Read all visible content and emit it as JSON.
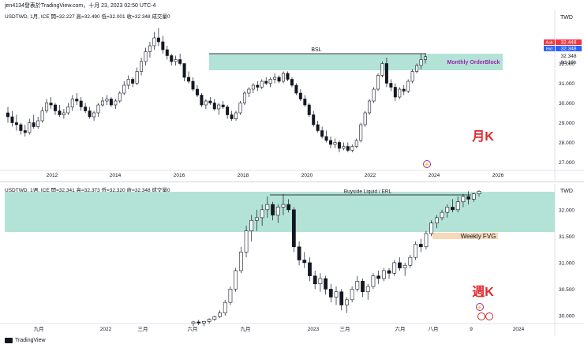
{
  "header": {
    "text": "jen4134發表於TradingView.com，十月 23, 2023 02:50 UTC-4"
  },
  "footer": {
    "brand": "TradingView"
  },
  "monthly": {
    "title": "USDTWD, 1月, ICE  開=32.227  高=32.490  低=32.001  收=32.348  成交量0",
    "currency": "TWD",
    "ask": {
      "label": "Ask",
      "value": "32.448"
    },
    "bid": {
      "label": "Bid",
      "value": "32.348"
    },
    "last": {
      "value": "32.348",
      "countdown": "8d 16h"
    },
    "zone_label": "Monthly OrderBlock",
    "bsl_label": "BSL",
    "period_label": "月K",
    "colors": {
      "zone": "#b2e3d6",
      "zone_label": "#9c27b0",
      "period": "#e0292f",
      "ask": "#f23645",
      "bid": "#2962ff"
    }
  },
  "weekly": {
    "title": "USDTWD, 1週, ICE  開=32.341  高=32.373  低=32.320  收=32.348  成交量0",
    "currency": "TWD",
    "erl_label": "Buyside Liquid / ERL",
    "fvg_label": "Weekly FVG",
    "period_label": "週K",
    "colors": {
      "zone": "#b2e3d6",
      "fvg": "#f8d8b8",
      "period": "#e0292f"
    }
  },
  "chart_data": [
    {
      "type": "candlestick",
      "title": "USDTWD, 1月, ICE",
      "xlabel": "",
      "ylabel": "",
      "x_ticks": [
        "2012",
        "2014",
        "2016",
        "2018",
        "2020",
        "2022",
        "2024",
        "2026"
      ],
      "y_ticks": [
        "27.000",
        "28.000",
        "29.000",
        "30.000",
        "31.000",
        "32.000"
      ],
      "ylim": [
        26.7,
        33.9
      ],
      "grid": false,
      "last_close": 32.348,
      "zones": [
        {
          "label": "Monthly OrderBlock",
          "from": 31.63,
          "to": 32.39
        }
      ],
      "lines": [
        {
          "label": "BSL",
          "value": 32.45
        }
      ],
      "ohlc": [
        [
          29.5,
          29.8,
          29.0,
          29.3
        ],
        [
          29.3,
          29.6,
          28.8,
          29.0
        ],
        [
          29.0,
          29.4,
          28.6,
          28.9
        ],
        [
          28.9,
          29.0,
          28.4,
          28.6
        ],
        [
          28.6,
          28.9,
          28.3,
          28.5
        ],
        [
          28.5,
          29.2,
          28.4,
          29.0
        ],
        [
          29.0,
          29.4,
          28.7,
          28.8
        ],
        [
          28.8,
          29.3,
          28.7,
          29.1
        ],
        [
          29.1,
          29.8,
          29.0,
          29.6
        ],
        [
          29.6,
          30.2,
          29.5,
          30.0
        ],
        [
          30.0,
          30.3,
          29.7,
          29.9
        ],
        [
          29.9,
          30.0,
          29.4,
          29.6
        ],
        [
          29.6,
          29.9,
          29.3,
          29.4
        ],
        [
          29.4,
          29.7,
          29.2,
          29.5
        ],
        [
          29.5,
          30.0,
          29.4,
          29.8
        ],
        [
          29.8,
          30.4,
          29.6,
          30.2
        ],
        [
          30.2,
          30.5,
          29.9,
          30.1
        ],
        [
          30.1,
          30.3,
          29.6,
          29.8
        ],
        [
          29.8,
          30.0,
          29.5,
          29.6
        ],
        [
          29.6,
          29.8,
          29.2,
          29.3
        ],
        [
          29.3,
          29.6,
          29.1,
          29.5
        ],
        [
          29.5,
          30.0,
          29.3,
          29.9
        ],
        [
          29.9,
          30.3,
          29.8,
          30.1
        ],
        [
          30.1,
          30.4,
          29.9,
          30.2
        ],
        [
          30.2,
          30.3,
          29.8,
          29.9
        ],
        [
          29.9,
          30.2,
          29.7,
          30.1
        ],
        [
          30.1,
          30.6,
          30.0,
          30.5
        ],
        [
          30.5,
          31.1,
          30.4,
          30.9
        ],
        [
          30.9,
          31.4,
          30.7,
          31.2
        ],
        [
          31.2,
          31.3,
          30.8,
          31.0
        ],
        [
          31.0,
          31.8,
          30.9,
          31.6
        ],
        [
          31.6,
          32.3,
          31.4,
          32.1
        ],
        [
          32.1,
          32.8,
          31.9,
          32.6
        ],
        [
          32.6,
          33.1,
          32.3,
          32.9
        ],
        [
          32.9,
          33.6,
          32.7,
          33.3
        ],
        [
          33.3,
          33.8,
          32.9,
          33.1
        ],
        [
          33.1,
          33.4,
          32.5,
          32.7
        ],
        [
          32.7,
          32.9,
          32.2,
          32.4
        ],
        [
          32.4,
          32.5,
          31.9,
          32.1
        ],
        [
          32.1,
          32.4,
          31.9,
          32.2
        ],
        [
          32.2,
          32.5,
          31.9,
          32.0
        ],
        [
          32.0,
          32.0,
          31.1,
          31.3
        ],
        [
          31.3,
          31.6,
          31.0,
          31.1
        ],
        [
          31.1,
          31.3,
          30.6,
          30.7
        ],
        [
          30.7,
          30.9,
          30.3,
          30.4
        ],
        [
          30.4,
          30.5,
          29.8,
          29.9
        ],
        [
          29.9,
          30.2,
          29.7,
          30.1
        ],
        [
          30.1,
          30.3,
          29.9,
          30.0
        ],
        [
          30.0,
          30.2,
          29.6,
          29.7
        ],
        [
          29.7,
          30.0,
          29.4,
          29.9
        ],
        [
          29.9,
          30.1,
          29.7,
          29.8
        ],
        [
          29.8,
          29.9,
          29.2,
          29.4
        ],
        [
          29.4,
          29.6,
          29.1,
          29.2
        ],
        [
          29.2,
          29.6,
          29.1,
          29.5
        ],
        [
          29.5,
          30.1,
          29.4,
          30.0
        ],
        [
          30.0,
          30.6,
          29.9,
          30.5
        ],
        [
          30.5,
          30.8,
          30.3,
          30.7
        ],
        [
          30.7,
          31.0,
          30.5,
          30.9
        ],
        [
          30.9,
          31.1,
          30.6,
          30.8
        ],
        [
          30.8,
          31.2,
          30.7,
          31.1
        ],
        [
          31.1,
          31.3,
          30.9,
          31.0
        ],
        [
          31.0,
          31.3,
          30.8,
          31.2
        ],
        [
          31.2,
          31.5,
          31.0,
          31.3
        ],
        [
          31.3,
          31.4,
          31.0,
          31.1
        ],
        [
          31.1,
          31.6,
          31.0,
          31.5
        ],
        [
          31.5,
          31.6,
          31.1,
          31.2
        ],
        [
          31.2,
          31.3,
          30.8,
          30.9
        ],
        [
          30.9,
          31.0,
          30.4,
          30.5
        ],
        [
          30.5,
          30.7,
          30.1,
          30.2
        ],
        [
          30.2,
          30.4,
          29.8,
          29.9
        ],
        [
          29.9,
          30.0,
          29.3,
          29.4
        ],
        [
          29.4,
          29.6,
          28.8,
          28.9
        ],
        [
          28.9,
          29.1,
          28.5,
          28.6
        ],
        [
          28.6,
          28.8,
          28.2,
          28.3
        ],
        [
          28.3,
          28.6,
          28.0,
          28.1
        ],
        [
          28.1,
          28.3,
          27.7,
          27.9
        ],
        [
          27.9,
          28.2,
          27.7,
          28.0
        ],
        [
          28.0,
          28.1,
          27.5,
          27.7
        ],
        [
          27.7,
          28.0,
          27.6,
          27.8
        ],
        [
          27.8,
          28.0,
          27.5,
          27.6
        ],
        [
          27.6,
          27.9,
          27.5,
          27.8
        ],
        [
          27.8,
          28.2,
          27.7,
          28.1
        ],
        [
          28.1,
          29.0,
          28.0,
          28.9
        ],
        [
          28.9,
          29.6,
          28.8,
          29.5
        ],
        [
          29.5,
          30.2,
          29.4,
          30.1
        ],
        [
          30.1,
          30.8,
          30.0,
          30.7
        ],
        [
          30.7,
          31.5,
          30.6,
          31.4
        ],
        [
          31.4,
          32.1,
          31.3,
          32.0
        ],
        [
          32.0,
          32.3,
          30.8,
          31.0
        ],
        [
          31.0,
          31.2,
          30.6,
          30.8
        ],
        [
          30.8,
          31.0,
          30.1,
          30.3
        ],
        [
          30.3,
          30.8,
          30.2,
          30.7
        ],
        [
          30.7,
          30.9,
          30.4,
          30.6
        ],
        [
          30.6,
          31.2,
          30.5,
          31.1
        ],
        [
          31.1,
          31.7,
          31.0,
          31.6
        ],
        [
          31.6,
          32.0,
          31.5,
          31.9
        ],
        [
          31.9,
          32.5,
          31.7,
          32.2
        ],
        [
          32.2,
          32.5,
          32.0,
          32.35
        ]
      ]
    },
    {
      "type": "candlestick",
      "title": "USDTWD, 1週, ICE",
      "xlabel": "",
      "ylabel": "",
      "x_ticks": [
        "九月",
        "2022",
        "三月",
        "六月",
        "九月",
        "2023",
        "三月",
        "六月",
        "八月",
        "9",
        "2024"
      ],
      "y_ticks": [
        "30.000",
        "30.500",
        "31.000",
        "31.500",
        "32.000"
      ],
      "ylim": [
        29.85,
        32.4
      ],
      "grid": false,
      "last_close": 32.348,
      "zones": [
        {
          "label": "Buyside Liquid / ERL",
          "from": 31.63,
          "to": 32.35
        },
        {
          "label": "Weekly FVG",
          "from": 31.52,
          "to": 31.6
        }
      ],
      "lines": [
        {
          "label": "Buyside Liquid / ERL",
          "value": 32.25
        }
      ],
      "ohlc": [
        [
          29.85,
          29.9,
          29.8,
          29.88
        ],
        [
          29.88,
          29.92,
          29.82,
          29.86
        ],
        [
          29.86,
          29.9,
          29.8,
          29.89
        ],
        [
          29.89,
          29.95,
          29.85,
          29.93
        ],
        [
          29.93,
          30.0,
          29.9,
          29.98
        ],
        [
          29.98,
          30.1,
          29.95,
          30.05
        ],
        [
          30.05,
          30.3,
          30.0,
          30.25
        ],
        [
          30.25,
          30.55,
          30.2,
          30.5
        ],
        [
          30.5,
          30.9,
          30.45,
          30.85
        ],
        [
          30.85,
          31.3,
          30.8,
          31.2
        ],
        [
          31.2,
          31.7,
          31.1,
          31.6
        ],
        [
          31.6,
          31.9,
          31.4,
          31.8
        ],
        [
          31.8,
          32.0,
          31.6,
          31.85
        ],
        [
          31.85,
          32.1,
          31.7,
          32.0
        ],
        [
          32.0,
          32.25,
          31.85,
          32.1
        ],
        [
          32.1,
          32.15,
          31.8,
          31.9
        ],
        [
          31.9,
          32.1,
          31.75,
          32.05
        ],
        [
          32.05,
          32.3,
          31.9,
          32.1
        ],
        [
          32.1,
          32.2,
          31.95,
          32.0
        ],
        [
          32.0,
          32.05,
          31.2,
          31.3
        ],
        [
          31.3,
          31.4,
          30.95,
          31.05
        ],
        [
          31.05,
          31.2,
          30.9,
          31.0
        ],
        [
          31.0,
          31.1,
          30.65,
          30.75
        ],
        [
          30.75,
          30.85,
          30.5,
          30.6
        ],
        [
          30.6,
          30.8,
          30.45,
          30.7
        ],
        [
          30.7,
          30.75,
          30.4,
          30.5
        ],
        [
          30.5,
          30.6,
          30.25,
          30.35
        ],
        [
          30.35,
          30.55,
          30.2,
          30.45
        ],
        [
          30.45,
          30.5,
          30.1,
          30.2
        ],
        [
          30.2,
          30.35,
          30.05,
          30.3
        ],
        [
          30.3,
          30.55,
          30.25,
          30.5
        ],
        [
          30.5,
          30.75,
          30.45,
          30.65
        ],
        [
          30.65,
          30.7,
          30.35,
          30.45
        ],
        [
          30.45,
          30.6,
          30.3,
          30.55
        ],
        [
          30.55,
          30.8,
          30.5,
          30.75
        ],
        [
          30.75,
          30.85,
          30.6,
          30.7
        ],
        [
          30.7,
          30.9,
          30.65,
          30.85
        ],
        [
          30.85,
          30.9,
          30.7,
          30.8
        ],
        [
          30.8,
          31.05,
          30.75,
          31.0
        ],
        [
          31.0,
          31.1,
          30.85,
          30.9
        ],
        [
          30.9,
          31.0,
          30.75,
          30.95
        ],
        [
          30.95,
          31.15,
          30.9,
          31.1
        ],
        [
          31.1,
          31.4,
          31.05,
          31.35
        ],
        [
          31.35,
          31.45,
          31.2,
          31.3
        ],
        [
          31.3,
          31.6,
          31.25,
          31.55
        ],
        [
          31.55,
          31.8,
          31.5,
          31.75
        ],
        [
          31.75,
          31.9,
          31.65,
          31.85
        ],
        [
          31.85,
          32.0,
          31.8,
          31.95
        ],
        [
          31.95,
          32.1,
          31.85,
          32.05
        ],
        [
          32.05,
          32.2,
          31.95,
          32.0
        ],
        [
          32.0,
          32.25,
          31.95,
          32.15
        ],
        [
          32.15,
          32.3,
          32.05,
          32.25
        ],
        [
          32.25,
          32.35,
          32.1,
          32.2
        ],
        [
          32.2,
          32.32,
          32.15,
          32.3
        ],
        [
          32.3,
          32.37,
          32.25,
          32.35
        ]
      ]
    }
  ]
}
